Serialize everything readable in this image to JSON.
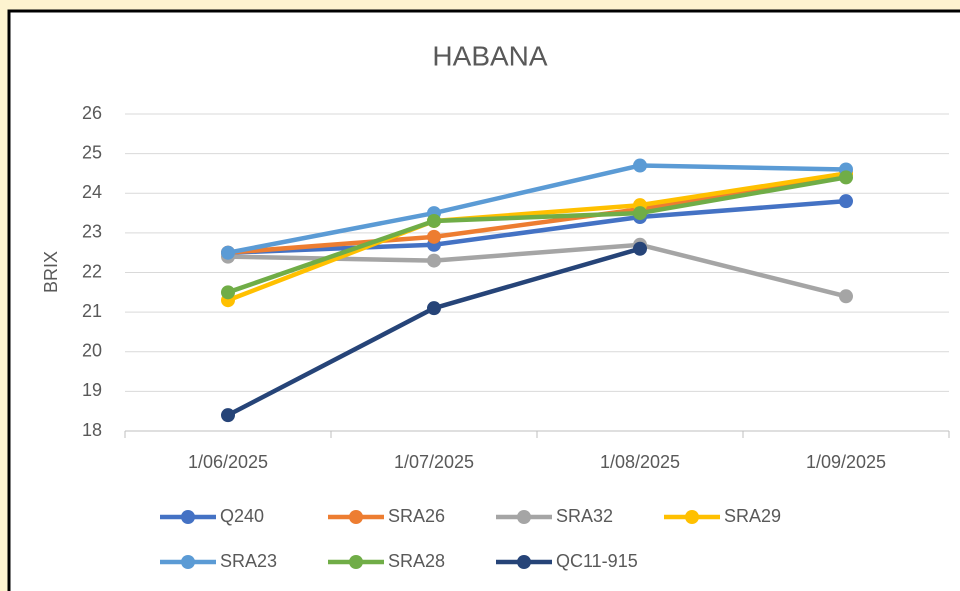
{
  "chart_data": {
    "type": "line",
    "title": "HABANA",
    "y_label": "BRIX",
    "categories": [
      "1/06/2025",
      "1/07/2025",
      "1/08/2025",
      "1/09/2025"
    ],
    "series": [
      {
        "name": "Q240",
        "color": "#4472c4",
        "values": [
          22.5,
          22.7,
          23.4,
          23.8
        ]
      },
      {
        "name": "SRA26",
        "color": "#ed7d31",
        "values": [
          22.5,
          22.9,
          23.6,
          24.5
        ]
      },
      {
        "name": "SRA32",
        "color": "#a5a5a5",
        "values": [
          22.4,
          22.3,
          22.7,
          21.4
        ]
      },
      {
        "name": "SRA29",
        "color": "#ffc000",
        "values": [
          21.3,
          23.3,
          23.7,
          24.5
        ]
      },
      {
        "name": "SRA23",
        "color": "#5b9bd5",
        "values": [
          22.5,
          23.5,
          24.7,
          24.6
        ]
      },
      {
        "name": "SRA28",
        "color": "#70ad47",
        "values": [
          21.5,
          23.3,
          23.5,
          24.4
        ]
      },
      {
        "name": "QC11-915",
        "color": "#264478",
        "values": [
          18.4,
          21.1,
          22.6,
          null
        ]
      }
    ],
    "ylim": [
      18,
      26
    ],
    "yticks": [
      18,
      19,
      20,
      21,
      22,
      23,
      24,
      25,
      26
    ],
    "grid": true,
    "legend": "bottom"
  }
}
